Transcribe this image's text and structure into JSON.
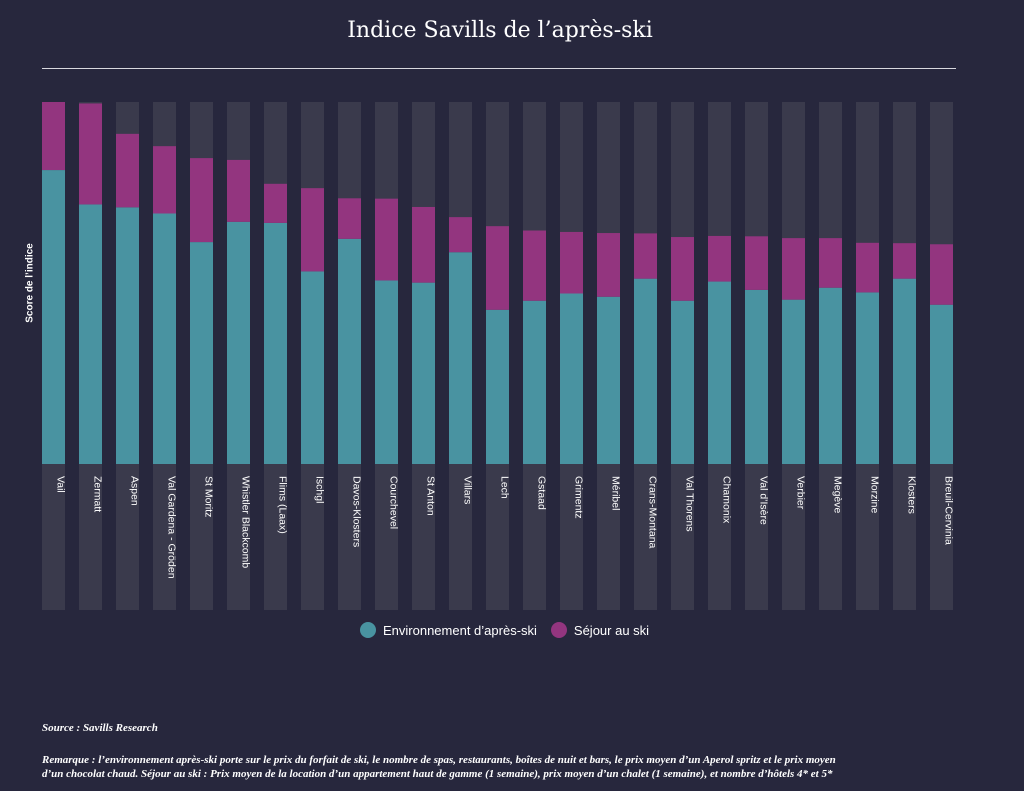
{
  "colors": {
    "background": "#27273d",
    "environment": "#4993a1",
    "stay": "#93357f",
    "column_bg": "#3a3a4c"
  },
  "chart_data": {
    "type": "bar",
    "stacked": true,
    "title": "Indice Savills de l’après-ski",
    "xlabel": "",
    "ylabel": "Score de l’indice",
    "ylim": [
      0,
      100
    ],
    "grid": false,
    "legend_position": "bottom",
    "categories": [
      "Vail",
      "Zermatt",
      "Aspen",
      "Val Gardena - Gröden",
      "St Moritz",
      "Whistler Blackcomb",
      "Flims (Laax)",
      "Ischgl",
      "Davos-Klosters",
      "Courchevel",
      "St Anton",
      "Villars",
      "Lech",
      "Gstaad",
      "Grimentz",
      "Méribel",
      "Crans-Montana",
      "Val Thorens",
      "Chamonix",
      "Val d’Isère",
      "Verbier",
      "Megève",
      "Morzine",
      "Klosters",
      "Breuil-Cervinia"
    ],
    "series": [
      {
        "name": "Environnement d’après-ski",
        "color": "#4993a1",
        "values": [
          81.2,
          71.7,
          70.9,
          69.2,
          61.3,
          66.9,
          66.6,
          53.2,
          62.2,
          50.7,
          50.1,
          58.5,
          42.6,
          45.1,
          47.1,
          46.2,
          51.2,
          45.1,
          50.4,
          48.1,
          45.4,
          48.7,
          47.4,
          51.2,
          44.0
        ],
        "stacked_total_note": ""
      },
      {
        "name": "Séjour au ski",
        "color": "#93357f",
        "values": [
          18.8,
          27.9,
          20.3,
          18.6,
          23.2,
          17.1,
          10.8,
          23.0,
          11.2,
          22.6,
          20.9,
          9.7,
          23.1,
          19.4,
          17.0,
          17.6,
          12.5,
          17.6,
          12.6,
          14.8,
          17.0,
          13.7,
          13.7,
          9.8,
          16.7
        ]
      }
    ]
  },
  "legend": {
    "env_label": "Environnement d’après-ski",
    "stay_label": "Séjour au ski"
  },
  "footer": {
    "source": "Source : Savills Research",
    "note_line1": "Remarque : l’environnement après-ski porte sur le prix du forfait de ski, le nombre de spas, restaurants, boîtes de nuit et bars, le prix moyen d’un Aperol spritz et le prix moyen",
    "note_line2": "d’un chocolat chaud. Séjour au ski : Prix moyen de la location d’un appartement haut de gamme (1 semaine), prix moyen d’un chalet (1 semaine), et nombre d’hôtels 4* et 5*"
  }
}
